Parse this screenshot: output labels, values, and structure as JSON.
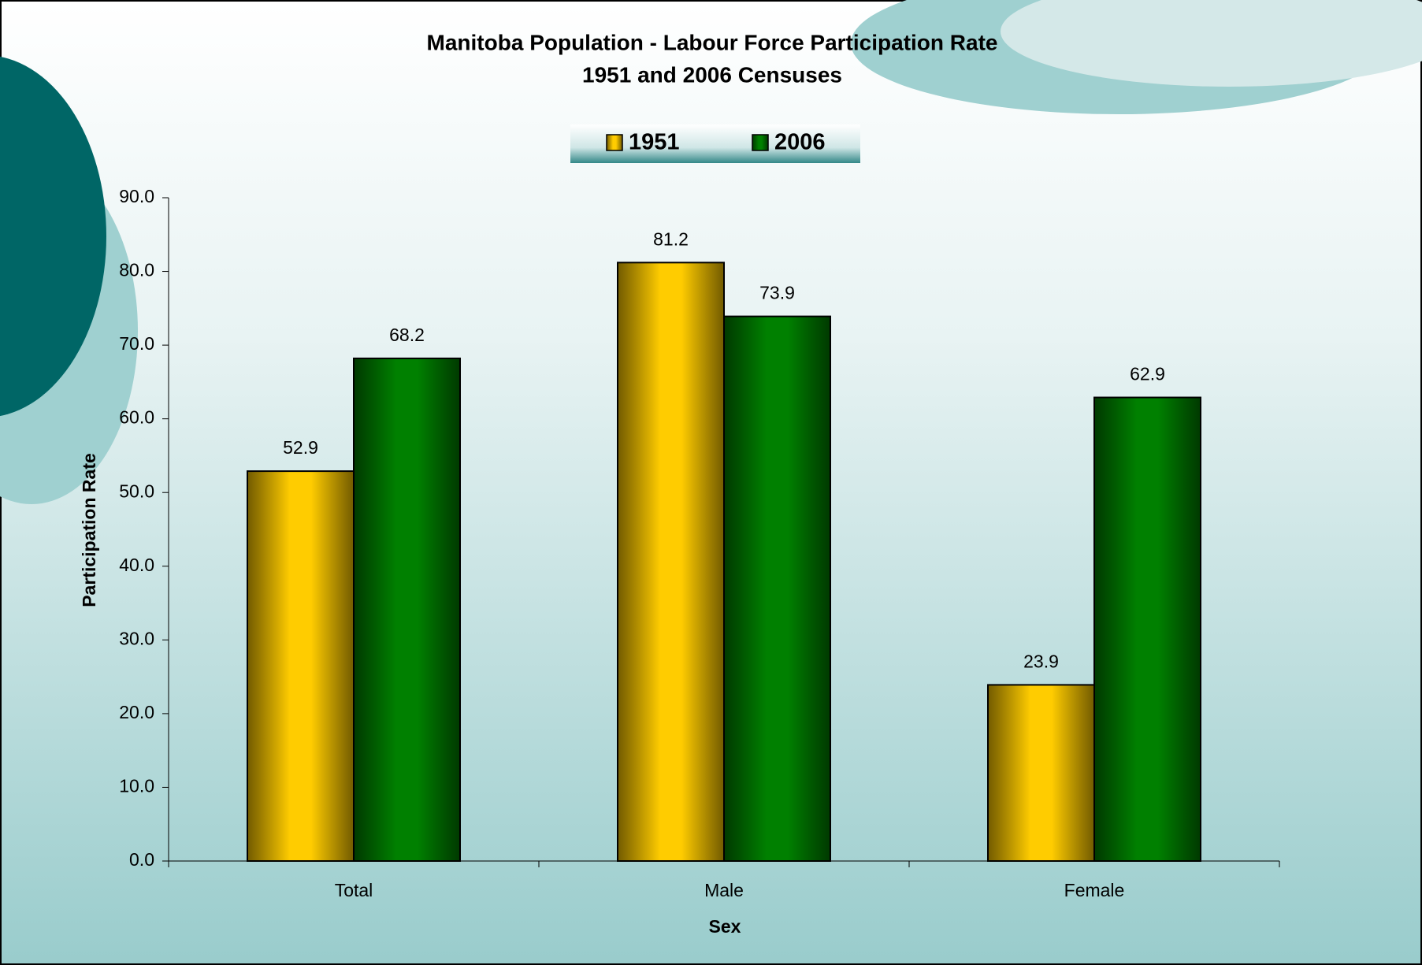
{
  "chart_data": {
    "type": "bar",
    "title": "Manitoba Population - Labour Force Participation Rate",
    "subtitle": "1951 and 2006 Censuses",
    "x_label": "Sex",
    "y_label": "Participation Rate",
    "categories": [
      "Total",
      "Male",
      "Female"
    ],
    "series": [
      {
        "name": "1951",
        "color": "#ffcc00",
        "values": [
          52.9,
          81.2,
          23.9
        ]
      },
      {
        "name": "2006",
        "color": "#008000",
        "values": [
          68.2,
          73.9,
          62.9
        ]
      }
    ],
    "ylim": [
      0,
      90
    ],
    "yticks": [
      {
        "value": 0,
        "label": "0.0"
      },
      {
        "value": 10,
        "label": "10.0"
      },
      {
        "value": 20,
        "label": "20.0"
      },
      {
        "value": 30,
        "label": "30.0"
      },
      {
        "value": 40,
        "label": "40.0"
      },
      {
        "value": 50,
        "label": "50.0"
      },
      {
        "value": 60,
        "label": "60.0"
      },
      {
        "value": 70,
        "label": "70.0"
      },
      {
        "value": 80,
        "label": "80.0"
      },
      {
        "value": 90,
        "label": "90.0"
      }
    ],
    "legend": "top",
    "grid": false
  }
}
